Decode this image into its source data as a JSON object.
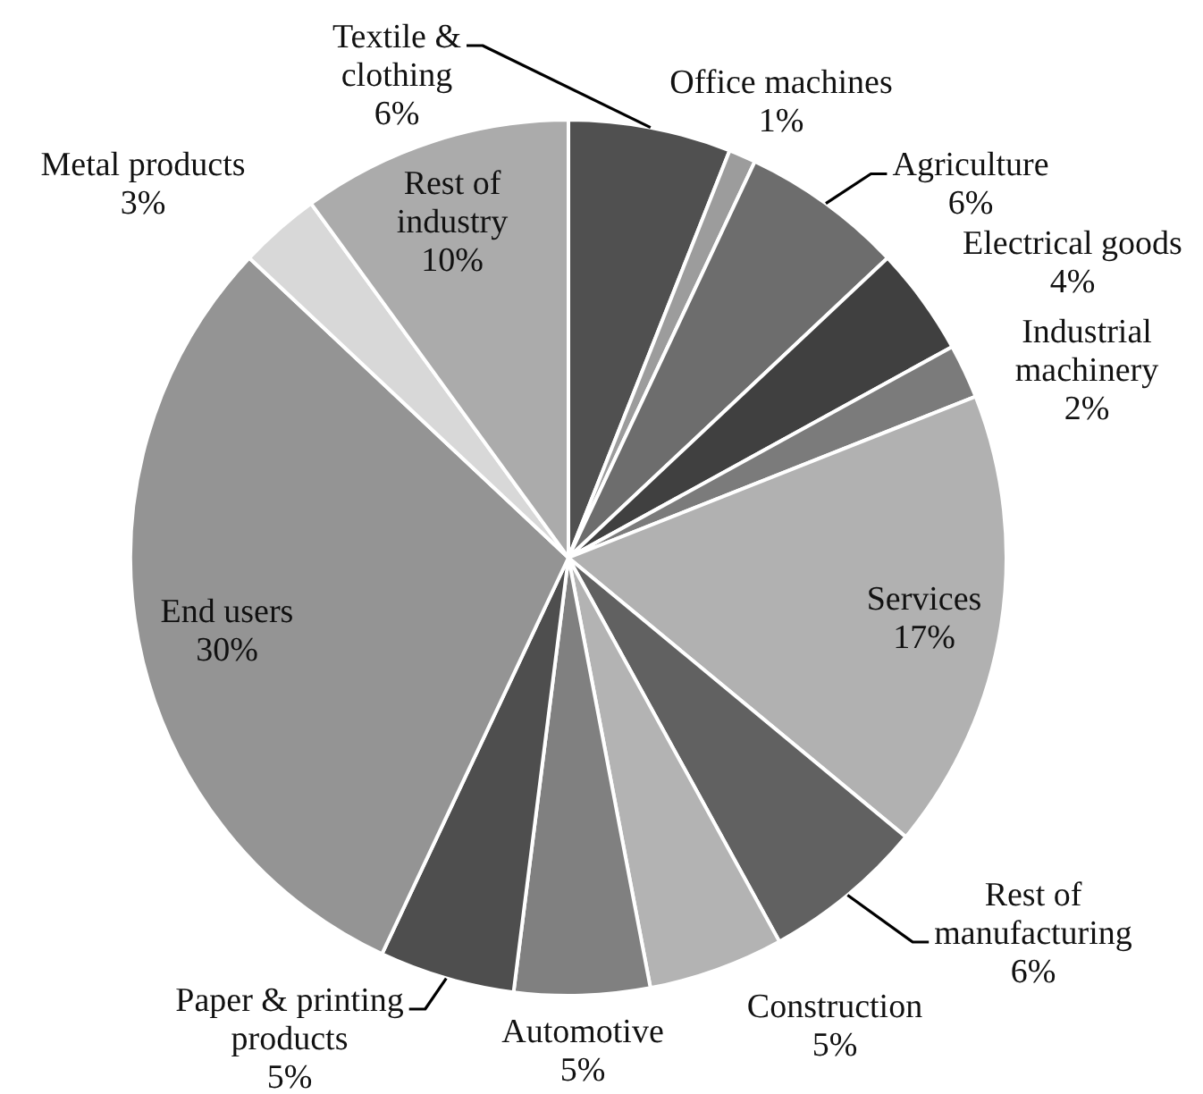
{
  "chart_data": {
    "type": "pie",
    "categories": [
      "Textile & clothing",
      "Office machines",
      "Agriculture",
      "Electrical goods",
      "Industrial machinery",
      "Services",
      "Rest of manufacturing",
      "Construction",
      "Automotive",
      "Paper & printing products",
      "End users",
      "Metal products",
      "Rest of industry"
    ],
    "values": [
      6,
      1,
      6,
      4,
      2,
      17,
      6,
      5,
      5,
      5,
      30,
      3,
      10
    ],
    "value_labels": [
      "6%",
      "1%",
      "6%",
      "4%",
      "2%",
      "17%",
      "6%",
      "5%",
      "5%",
      "5%",
      "30%",
      "3%",
      "10%"
    ],
    "colors": [
      "#505050",
      "#9c9c9c",
      "#6d6d6d",
      "#404040",
      "#7b7b7b",
      "#b1b1b1",
      "#616161",
      "#b3b3b3",
      "#808080",
      "#4e4e4e",
      "#949494",
      "#d8d8d8",
      "#ababab"
    ],
    "legend": false
  }
}
